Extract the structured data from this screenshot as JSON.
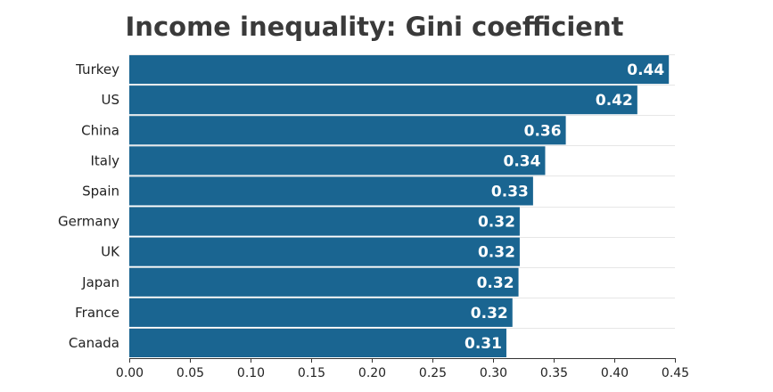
{
  "chart_data": {
    "type": "bar",
    "orientation": "horizontal",
    "title": "Income inequality: Gini coefficient",
    "categories": [
      "Turkey",
      "US",
      "China",
      "Italy",
      "Spain",
      "Germany",
      "UK",
      "Japan",
      "France",
      "Canada"
    ],
    "values": [
      0.445,
      0.419,
      0.36,
      0.343,
      0.333,
      0.322,
      0.322,
      0.321,
      0.316,
      0.311
    ],
    "value_labels": [
      "0.44",
      "0.42",
      "0.36",
      "0.34",
      "0.33",
      "0.32",
      "0.32",
      "0.32",
      "0.32",
      "0.31"
    ],
    "xlim": [
      0,
      0.45
    ],
    "xticks": [
      "0.00",
      "0.05",
      "0.10",
      "0.15",
      "0.20",
      "0.25",
      "0.30",
      "0.35",
      "0.40",
      "0.45"
    ],
    "xlabel": "",
    "ylabel": "",
    "grid": "horizontal",
    "bar_color": "#1a6591"
  }
}
